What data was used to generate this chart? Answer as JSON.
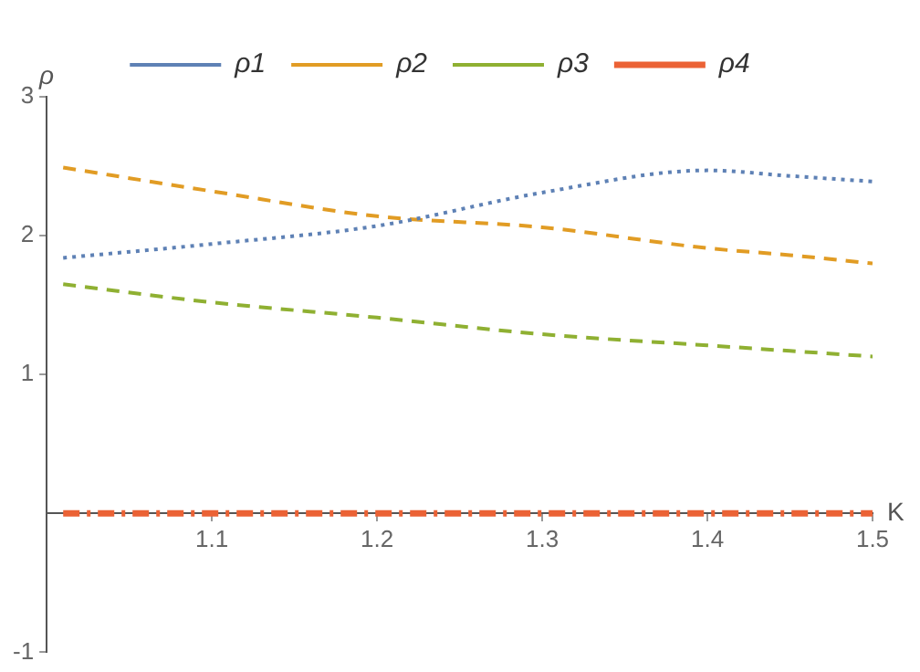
{
  "chart_data": {
    "type": "line",
    "xlabel": "K",
    "ylabel": "ρ",
    "xlim": [
      1.0,
      1.5
    ],
    "xticks": [
      1.1,
      1.2,
      1.3,
      1.4,
      1.5
    ],
    "ylim": [
      -1,
      3
    ],
    "yticks": [
      -1,
      1,
      2,
      3
    ],
    "grid": false,
    "legend": "top",
    "marker": "none",
    "x": [
      1.01,
      1.1,
      1.2,
      1.3,
      1.4,
      1.45,
      1.5
    ],
    "series": [
      {
        "name": "ρ1",
        "color": "#5e81b5",
        "line_style": "dotted",
        "values": [
          1.84,
          1.94,
          2.07,
          2.31,
          2.47,
          2.43,
          2.39
        ]
      },
      {
        "name": "ρ2",
        "color": "#e19c24",
        "line_style": "dashed",
        "values": [
          2.49,
          2.32,
          2.14,
          2.06,
          1.91,
          1.86,
          1.8
        ]
      },
      {
        "name": "ρ3",
        "color": "#8fb032",
        "line_style": "dashed",
        "values": [
          1.65,
          1.52,
          1.41,
          1.29,
          1.21,
          1.17,
          1.13
        ]
      },
      {
        "name": "ρ4",
        "color": "#eb6235",
        "line_style": "dashed",
        "values": [
          0,
          0,
          0,
          0,
          0,
          0,
          0
        ]
      }
    ]
  }
}
